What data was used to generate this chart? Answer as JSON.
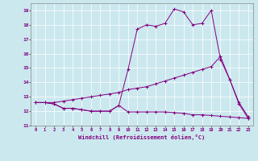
{
  "xlabel": "Windchill (Refroidissement éolien,°C)",
  "background_color": "#cce8ef",
  "line_color": "#800080",
  "x_ticks": [
    0,
    1,
    2,
    3,
    4,
    5,
    6,
    7,
    8,
    9,
    10,
    11,
    12,
    13,
    14,
    15,
    16,
    17,
    18,
    19,
    20,
    21,
    22,
    23
  ],
  "ylim": [
    11,
    19.5
  ],
  "xlim": [
    -0.5,
    23.5
  ],
  "y_ticks": [
    11,
    12,
    13,
    14,
    15,
    16,
    17,
    18,
    19
  ],
  "line1_y": [
    12.6,
    12.6,
    12.5,
    12.2,
    12.2,
    12.1,
    12.0,
    12.0,
    12.0,
    12.4,
    11.95,
    11.95,
    11.95,
    11.95,
    11.95,
    11.9,
    11.85,
    11.75,
    11.75,
    11.7,
    11.65,
    11.6,
    11.55,
    11.5
  ],
  "line2_y": [
    12.6,
    12.6,
    12.6,
    12.7,
    12.8,
    12.9,
    13.0,
    13.1,
    13.2,
    13.3,
    13.5,
    13.6,
    13.7,
    13.9,
    14.1,
    14.3,
    14.5,
    14.7,
    14.9,
    15.1,
    15.8,
    14.2,
    12.6,
    11.6
  ],
  "line3_y": [
    12.6,
    12.6,
    12.5,
    12.2,
    12.2,
    12.1,
    12.0,
    12.0,
    12.0,
    12.4,
    14.9,
    17.7,
    18.0,
    17.9,
    18.1,
    19.1,
    18.9,
    18.0,
    18.1,
    19.0,
    15.6,
    14.2,
    12.5,
    11.5
  ]
}
